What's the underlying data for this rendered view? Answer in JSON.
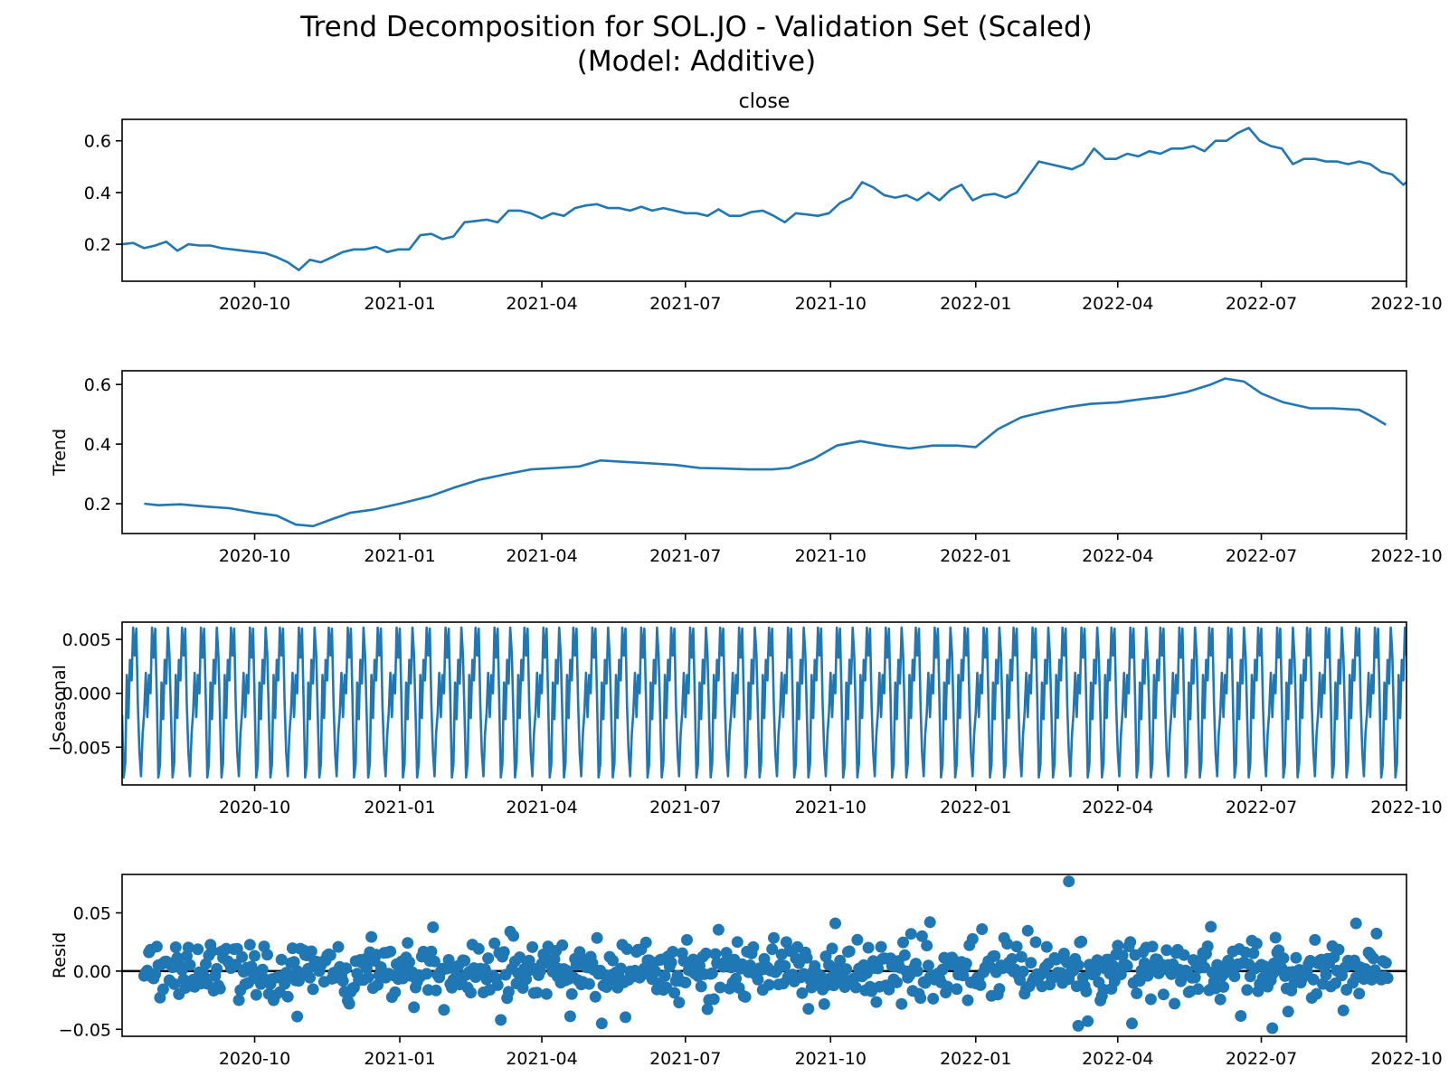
{
  "figure": {
    "title_line1": "Trend Decomposition for SOL.JO - Validation Set (Scaled)",
    "title_line2": "(Model: Additive)"
  },
  "colors": {
    "line": "#1f77b4",
    "axis": "#000000",
    "background": "#ffffff"
  },
  "chart_data": [
    {
      "type": "line",
      "panel": "observed",
      "title": "close",
      "ylabel": "",
      "x_axis_type": "date",
      "xlim": [
        "2020-07-09",
        "2022-10-01"
      ],
      "ylim": [
        0.057,
        0.683
      ],
      "xticks": [
        "2020-10",
        "2021-01",
        "2021-04",
        "2021-07",
        "2021-10",
        "2022-01",
        "2022-04",
        "2022-07",
        "2022-10"
      ],
      "yticks": [
        "0.2",
        "0.4",
        "0.6"
      ],
      "series": [
        {
          "x": [
            "2020-07-09",
            "2020-07-16",
            "2020-07-23",
            "2020-07-30",
            "2020-08-06",
            "2020-08-13",
            "2020-08-20",
            "2020-08-27",
            "2020-09-03",
            "2020-09-10",
            "2020-09-17",
            "2020-09-24",
            "2020-10-01",
            "2020-10-08",
            "2020-10-15",
            "2020-10-22",
            "2020-10-29",
            "2020-11-05",
            "2020-11-12",
            "2020-11-19",
            "2020-11-26",
            "2020-12-03",
            "2020-12-10",
            "2020-12-17",
            "2020-12-24",
            "2020-12-31",
            "2021-01-07",
            "2021-01-14",
            "2021-01-21",
            "2021-01-28",
            "2021-02-04",
            "2021-02-11",
            "2021-02-18",
            "2021-02-25",
            "2021-03-04",
            "2021-03-11",
            "2021-03-18",
            "2021-03-25",
            "2021-04-01",
            "2021-04-08",
            "2021-04-15",
            "2021-04-22",
            "2021-04-29",
            "2021-05-06",
            "2021-05-13",
            "2021-05-20",
            "2021-05-27",
            "2021-06-03",
            "2021-06-10",
            "2021-06-17",
            "2021-06-24",
            "2021-07-01",
            "2021-07-08",
            "2021-07-15",
            "2021-07-22",
            "2021-07-29",
            "2021-08-05",
            "2021-08-12",
            "2021-08-19",
            "2021-08-26",
            "2021-09-02",
            "2021-09-09",
            "2021-09-16",
            "2021-09-23",
            "2021-09-30",
            "2021-10-07",
            "2021-10-14",
            "2021-10-21",
            "2021-10-28",
            "2021-11-04",
            "2021-11-11",
            "2021-11-18",
            "2021-11-25",
            "2021-12-02",
            "2021-12-09",
            "2021-12-16",
            "2021-12-23",
            "2021-12-30",
            "2022-01-06",
            "2022-01-13",
            "2022-01-20",
            "2022-01-27",
            "2022-02-03",
            "2022-02-10",
            "2022-02-17",
            "2022-02-24",
            "2022-03-03",
            "2022-03-10",
            "2022-03-17",
            "2022-03-24",
            "2022-03-31",
            "2022-04-07",
            "2022-04-14",
            "2022-04-21",
            "2022-04-28",
            "2022-05-05",
            "2022-05-12",
            "2022-05-19",
            "2022-05-26",
            "2022-06-02",
            "2022-06-09",
            "2022-06-16",
            "2022-06-23",
            "2022-06-30",
            "2022-07-07",
            "2022-07-14",
            "2022-07-21",
            "2022-07-28",
            "2022-08-04",
            "2022-08-11",
            "2022-08-18",
            "2022-08-25",
            "2022-09-01",
            "2022-09-08",
            "2022-09-15",
            "2022-09-22",
            "2022-09-29",
            "2022-10-01"
          ],
          "y": [
            0.2,
            0.205,
            0.185,
            0.195,
            0.21,
            0.175,
            0.2,
            0.195,
            0.195,
            0.185,
            0.18,
            0.175,
            0.17,
            0.165,
            0.15,
            0.13,
            0.1,
            0.14,
            0.13,
            0.15,
            0.17,
            0.18,
            0.18,
            0.19,
            0.17,
            0.18,
            0.18,
            0.235,
            0.24,
            0.22,
            0.23,
            0.285,
            0.29,
            0.295,
            0.285,
            0.33,
            0.33,
            0.32,
            0.3,
            0.32,
            0.31,
            0.34,
            0.35,
            0.355,
            0.34,
            0.34,
            0.33,
            0.345,
            0.33,
            0.34,
            0.33,
            0.32,
            0.32,
            0.31,
            0.335,
            0.31,
            0.31,
            0.325,
            0.33,
            0.31,
            0.285,
            0.32,
            0.315,
            0.31,
            0.32,
            0.36,
            0.38,
            0.44,
            0.42,
            0.39,
            0.38,
            0.39,
            0.37,
            0.4,
            0.37,
            0.41,
            0.43,
            0.37,
            0.39,
            0.395,
            0.38,
            0.4,
            0.46,
            0.52,
            0.51,
            0.5,
            0.49,
            0.51,
            0.57,
            0.53,
            0.53,
            0.55,
            0.54,
            0.56,
            0.55,
            0.57,
            0.57,
            0.58,
            0.56,
            0.6,
            0.6,
            0.63,
            0.65,
            0.6,
            0.58,
            0.57,
            0.51,
            0.53,
            0.53,
            0.52,
            0.52,
            0.51,
            0.52,
            0.51,
            0.48,
            0.47,
            0.43,
            0.44
          ]
        }
      ]
    },
    {
      "type": "line",
      "panel": "trend",
      "title": "",
      "ylabel": "Trend",
      "x_axis_type": "date",
      "xlim": [
        "2020-07-09",
        "2022-10-01"
      ],
      "ylim": [
        0.1,
        0.646
      ],
      "xticks": [
        "2020-10",
        "2021-01",
        "2021-04",
        "2021-07",
        "2021-10",
        "2022-01",
        "2022-04",
        "2022-07",
        "2022-10"
      ],
      "yticks": [
        "0.2",
        "0.4",
        "0.6"
      ],
      "series": [
        {
          "x": [
            "2020-07-23",
            "2020-08-01",
            "2020-08-15",
            "2020-09-01",
            "2020-09-15",
            "2020-10-01",
            "2020-10-15",
            "2020-10-27",
            "2020-11-07",
            "2020-11-20",
            "2020-12-01",
            "2020-12-15",
            "2021-01-01",
            "2021-01-20",
            "2021-02-05",
            "2021-02-20",
            "2021-03-10",
            "2021-03-25",
            "2021-04-10",
            "2021-04-25",
            "2021-05-08",
            "2021-05-25",
            "2021-06-10",
            "2021-06-25",
            "2021-07-10",
            "2021-07-25",
            "2021-08-10",
            "2021-08-25",
            "2021-09-05",
            "2021-09-20",
            "2021-10-05",
            "2021-10-20",
            "2021-11-05",
            "2021-11-20",
            "2021-12-05",
            "2021-12-20",
            "2022-01-01",
            "2022-01-15",
            "2022-01-30",
            "2022-02-15",
            "2022-03-01",
            "2022-03-15",
            "2022-04-01",
            "2022-04-15",
            "2022-05-01",
            "2022-05-15",
            "2022-05-30",
            "2022-06-08",
            "2022-06-20",
            "2022-07-01",
            "2022-07-15",
            "2022-08-01",
            "2022-08-15",
            "2022-09-01",
            "2022-09-10",
            "2022-09-18"
          ],
          "y": [
            0.2,
            0.195,
            0.198,
            0.19,
            0.185,
            0.17,
            0.16,
            0.13,
            0.125,
            0.15,
            0.17,
            0.18,
            0.2,
            0.225,
            0.255,
            0.28,
            0.3,
            0.315,
            0.32,
            0.325,
            0.345,
            0.34,
            0.335,
            0.33,
            0.32,
            0.318,
            0.315,
            0.315,
            0.32,
            0.35,
            0.395,
            0.41,
            0.395,
            0.385,
            0.395,
            0.395,
            0.39,
            0.45,
            0.49,
            0.51,
            0.525,
            0.535,
            0.54,
            0.55,
            0.56,
            0.575,
            0.6,
            0.62,
            0.61,
            0.57,
            0.54,
            0.52,
            0.52,
            0.515,
            0.49,
            0.465
          ]
        }
      ]
    },
    {
      "type": "line",
      "panel": "seasonal",
      "title": "",
      "ylabel": "Seasonal",
      "x_axis_type": "date",
      "xlim": [
        "2020-07-09",
        "2022-10-01"
      ],
      "ylim": [
        -0.0085,
        0.0066
      ],
      "xticks": [
        "2020-10",
        "2021-01",
        "2021-04",
        "2021-07",
        "2021-10",
        "2022-01",
        "2022-04",
        "2022-07",
        "2022-10"
      ],
      "yticks": [
        "0.005",
        "0.000",
        "−0.005"
      ],
      "period_days": 31,
      "cycle_start": "2020-07-09",
      "cycle_pattern": [
        -0.002,
        -0.0078,
        -0.0065,
        0.0017,
        -0.0023,
        0.0031,
        0.0012,
        0.0061,
        0.0035,
        0.006,
        -0.001,
        -0.0055,
        -0.0077,
        -0.0038,
        -0.0018,
        0.0019,
        -0.0022,
        0.0017,
        0.0,
        0.0061,
        0.0033,
        0.006,
        -0.0005,
        -0.0078,
        -0.0066,
        0.001,
        -0.0024,
        0.0031,
        0.0009,
        0.0061,
        0.0036
      ]
    },
    {
      "type": "scatter",
      "panel": "residual",
      "title": "",
      "ylabel": "Resid",
      "x_axis_type": "date",
      "xlim": [
        "2020-07-09",
        "2022-10-01"
      ],
      "ylim": [
        -0.056,
        0.083
      ],
      "xticks": [
        "2020-10",
        "2021-01",
        "2021-04",
        "2021-07",
        "2021-10",
        "2022-01",
        "2022-04",
        "2022-07",
        "2022-10"
      ],
      "yticks": [
        "0.05",
        "0.00",
        "−0.05"
      ],
      "zero_line": 0,
      "start_date": "2020-07-23",
      "end_date": "2022-09-19",
      "points_per_week": 7,
      "highlights": [
        {
          "x": "2022-03-01",
          "y": 0.077
        },
        {
          "x": "2022-07-08",
          "y": -0.049
        },
        {
          "x": "2022-03-07",
          "y": -0.047
        },
        {
          "x": "2020-10-28",
          "y": -0.039
        },
        {
          "x": "2022-05-30",
          "y": 0.038
        },
        {
          "x": "2021-10-04",
          "y": 0.041
        },
        {
          "x": "2022-08-30",
          "y": 0.041
        },
        {
          "x": "2021-12-03",
          "y": 0.042
        }
      ]
    }
  ]
}
